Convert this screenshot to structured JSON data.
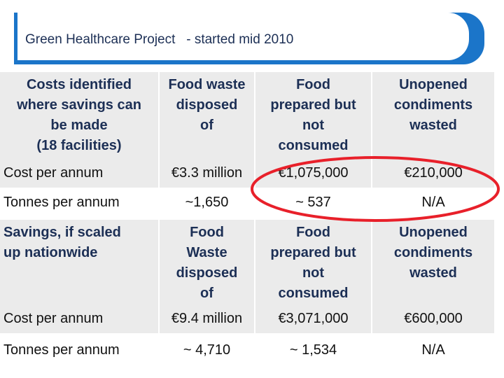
{
  "header": {
    "title": "Green Healthcare Project   - started mid 2010"
  },
  "table": {
    "sections": [
      {
        "heading": [
          [
            "Costs identified",
            "where savings can",
            "be made",
            "(18 facilities)"
          ],
          [
            "Food waste",
            "disposed",
            "of"
          ],
          [
            "Food",
            "prepared but",
            "not",
            "consumed"
          ],
          [
            "Unopened",
            "condiments",
            "wasted"
          ]
        ],
        "rows": [
          [
            "Cost per annum",
            "€3.3 million",
            "€1,075,000",
            "€210,000"
          ],
          [
            "Tonnes per annum",
            "~1,650",
            "~ 537",
            "N/A"
          ]
        ]
      },
      {
        "heading": [
          [
            "Savings, if scaled",
            "up nationwide"
          ],
          [
            "Food",
            "Waste",
            "disposed",
            "of"
          ],
          [
            "Food",
            "prepared but",
            "not",
            "consumed"
          ],
          [
            "Unopened",
            "condiments",
            "wasted"
          ]
        ],
        "rows": [
          [
            "Cost per annum",
            "€9.4 million",
            "€3,071,000",
            "€600,000"
          ],
          [
            "Tonnes per annum",
            "~ 4,710",
            "~ 1,534",
            "N/A"
          ]
        ]
      }
    ]
  }
}
